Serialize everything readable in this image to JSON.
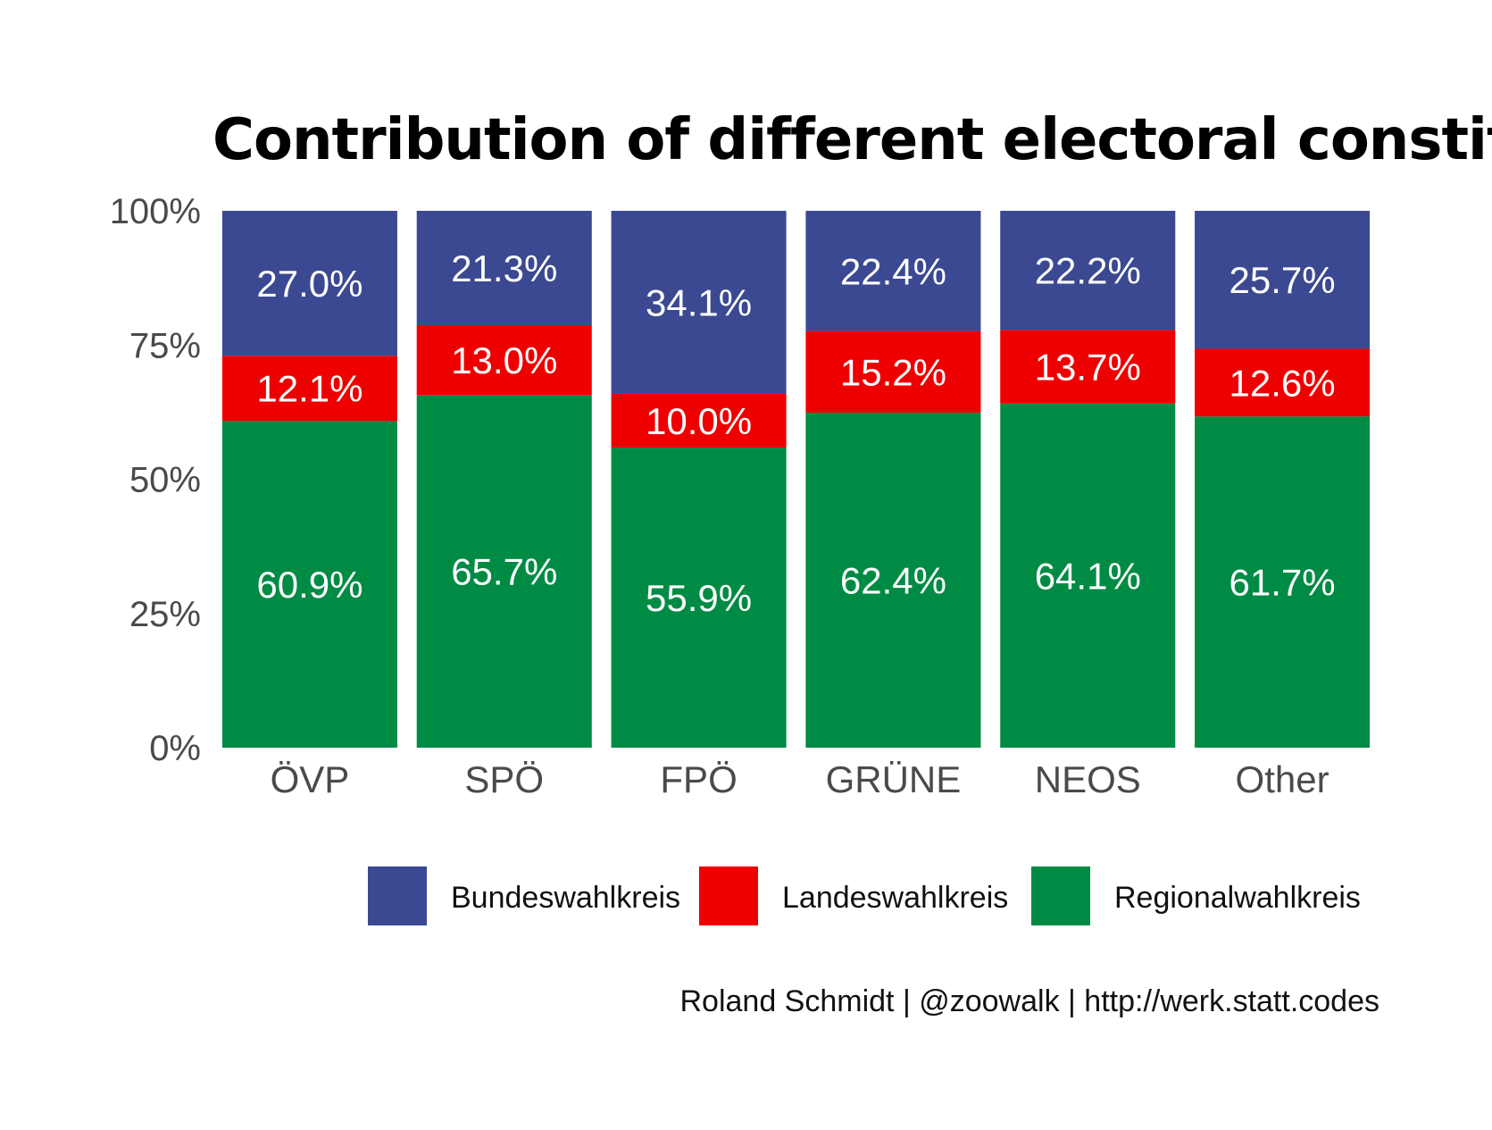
{
  "chart_data": {
    "type": "bar",
    "stacked": true,
    "title": "Contribution of different electoral constituencie",
    "xlabel": "",
    "ylabel": "",
    "ylim": [
      0,
      100
    ],
    "yticks": [
      "0%",
      "25%",
      "50%",
      "75%",
      "100%"
    ],
    "ytick_values": [
      0,
      25,
      50,
      75,
      100
    ],
    "categories": [
      "ÖVP",
      "SPÖ",
      "FPÖ",
      "GRÜNE",
      "NEOS",
      "Other"
    ],
    "series": [
      {
        "name": "Regionalwahlkreis",
        "color": "#008B45",
        "values": [
          60.9,
          65.7,
          55.9,
          62.4,
          64.1,
          61.7
        ],
        "labels": [
          "60.9%",
          "65.7%",
          "55.9%",
          "62.4%",
          "64.1%",
          "61.7%"
        ]
      },
      {
        "name": "Landeswahlkreis",
        "color": "#EE0000",
        "values": [
          12.1,
          13.0,
          10.0,
          15.2,
          13.7,
          12.6
        ],
        "labels": [
          "12.1%",
          "13.0%",
          "10.0%",
          "15.2%",
          "13.7%",
          "12.6%"
        ]
      },
      {
        "name": "Bundeswahlkreis",
        "color": "#3B4992",
        "values": [
          27.0,
          21.3,
          34.1,
          22.4,
          22.2,
          25.7
        ],
        "labels": [
          "27.0%",
          "21.3%",
          "34.1%",
          "22.4%",
          "22.2%",
          "25.7%"
        ]
      }
    ],
    "legend": {
      "position": "bottom",
      "order": [
        "Bundeswahlkreis",
        "Landeswahlkreis",
        "Regionalwahlkreis"
      ]
    },
    "grid": false,
    "caption": "Roland Schmidt | @zoowalk | http://werk.statt.codes"
  }
}
